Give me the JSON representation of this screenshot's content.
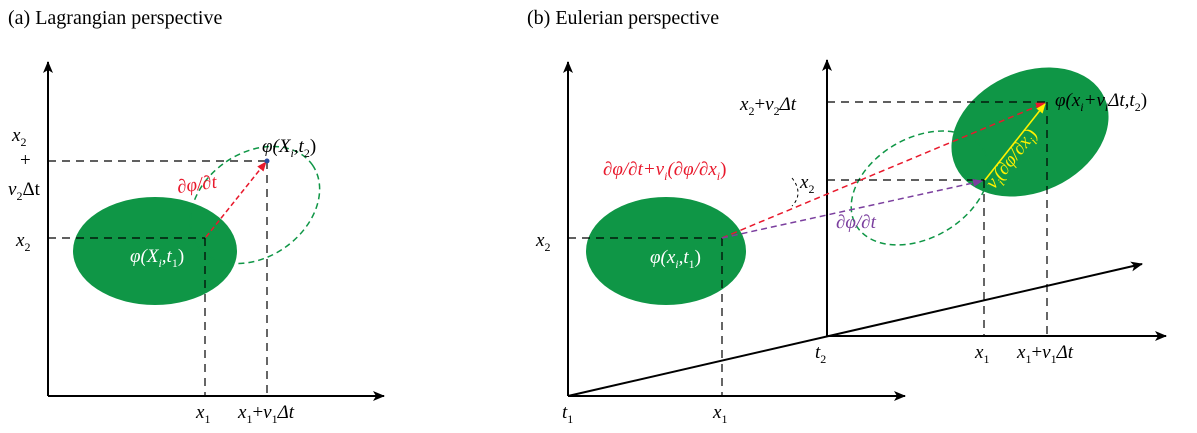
{
  "colors": {
    "blob": "#0f9646",
    "dashed_ellipse": "#0f9646",
    "red": "#e8192c",
    "purple": "#7b3f9e",
    "yellow": "#fff200",
    "axis": "#000000"
  },
  "panel_a": {
    "title": "(a) Lagrangian perspective",
    "x2_label": "x",
    "x2_sub": "2",
    "v2_top": "x",
    "v2_top_sub": "2",
    "v2_plus": "+",
    "v2_bottom_v": "v",
    "v2_bottom_sub": "2",
    "v2_bottom_rest": "Δt",
    "x1_label": "x",
    "x1_sub": "1",
    "x1v1_prefix": "x",
    "x1v1_sub1": "1",
    "x1v1_plus": "+",
    "x1v1_v": "v",
    "x1v1_sub2": "1",
    "x1v1_rest": "Δt",
    "phi_t1_a": "φ(",
    "phi_t1_X": "X",
    "phi_t1_i": "i",
    "phi_t1_comma": ",t",
    "phi_t1_sub": "1",
    "phi_t1_end": ")",
    "phi_t2_a": "φ(",
    "phi_t2_X": "X",
    "phi_t2_i": "i",
    "phi_t2_comma": ",t",
    "phi_t2_sub": "2",
    "phi_t2_end": ")",
    "dphi_dt": "∂φ/∂t"
  },
  "panel_b": {
    "title": "(b) Eulerian perspective",
    "x2_left": "x",
    "x2_left_sub": "2",
    "x2_mid": "x",
    "x2_mid_sub": "2",
    "x2v2_prefix": "x",
    "x2v2_sub1": "2",
    "x2v2_plus": "+",
    "x2v2_v": "v",
    "x2v2_sub2": "2",
    "x2v2_rest": "Δt",
    "t1": "t",
    "t1_sub": "1",
    "t2": "t",
    "t2_sub": "2",
    "x1_bottom": "x",
    "x1_bottom_sub": "1",
    "x1_right": "x",
    "x1_right_sub": "1",
    "x1v1_prefix": "x",
    "x1v1_sub1": "1",
    "x1v1_plus": "+",
    "x1v1_v": "v",
    "x1v1_sub2": "1",
    "x1v1_rest": "Δt",
    "phi_t1_a": "φ(",
    "phi_t1_x": "x",
    "phi_t1_i": "i",
    "phi_t1_comma": ",t",
    "phi_t1_sub": "1",
    "phi_t1_end": ")",
    "phi_t2_a": "φ(",
    "phi_t2_x": "x",
    "phi_t2_i": "i",
    "phi_t2_mid": "+v",
    "phi_t2_i2": "i",
    "phi_t2_rest": "Δt,t",
    "phi_t2_sub": "2",
    "phi_t2_end": ")",
    "material_deriv_a": "∂φ/∂t+v",
    "material_deriv_i": "i",
    "material_deriv_b": "(∂φ/∂x",
    "material_deriv_i2": "i",
    "material_deriv_end": ")",
    "partial_t": "∂φ/∂t",
    "advective_v": "v",
    "advective_i": "i",
    "advective_rest": "(∂φ/∂x",
    "advective_i2": "i",
    "advective_end": ")"
  }
}
